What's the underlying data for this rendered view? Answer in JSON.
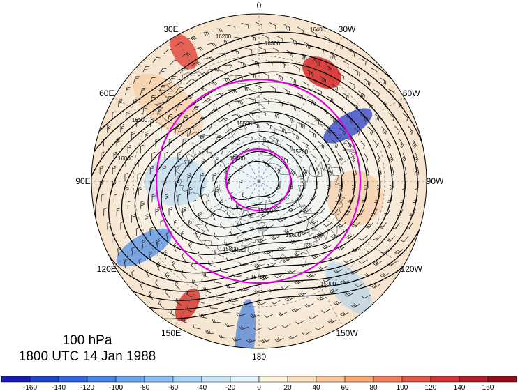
{
  "map": {
    "projection": "north-polar-stereographic",
    "longitude_labels": [
      {
        "text": "0",
        "lon": 0
      },
      {
        "text": "30W",
        "lon": -30
      },
      {
        "text": "60W",
        "lon": -60
      },
      {
        "text": "90W",
        "lon": -90
      },
      {
        "text": "120W",
        "lon": -120
      },
      {
        "text": "150W",
        "lon": -150
      },
      {
        "text": "180",
        "lon": 180
      },
      {
        "text": "150E",
        "lon": 150
      },
      {
        "text": "120E",
        "lon": 120
      },
      {
        "text": "90E",
        "lon": 90
      },
      {
        "text": "60E",
        "lon": 60
      },
      {
        "text": "30E",
        "lon": 30
      }
    ],
    "contour_labels": [
      "16400",
      "16300",
      "16200",
      "16100",
      "16000",
      "15900",
      "15800",
      "15700",
      "15600",
      "15500",
      "15400",
      "15300",
      "15200"
    ],
    "anomaly_centers": [
      {
        "sign": "positive",
        "location": "near 30E"
      },
      {
        "sign": "positive",
        "location": "near 30W"
      },
      {
        "sign": "negative",
        "location": "near 60W"
      },
      {
        "sign": "negative",
        "location": "near 120E"
      },
      {
        "sign": "positive",
        "location": "near 150E"
      },
      {
        "sign": "negative",
        "location": "near 150W-180"
      }
    ],
    "colors": {
      "contour": "#000000",
      "highlight_contour": "#e100e1",
      "coastline": "#333333"
    }
  },
  "caption": {
    "level": "100 hPa",
    "time": "1800 UTC 14 Jan 1988"
  },
  "colorbar": {
    "tick_labels": [
      "-160",
      "-140",
      "-120",
      "-100",
      "-80",
      "-60",
      "-40",
      "-20",
      "0",
      "20",
      "40",
      "60",
      "80",
      "100",
      "120",
      "140",
      "160"
    ],
    "colors": [
      "#1a1ab5",
      "#2244cc",
      "#3366dd",
      "#4d88e8",
      "#6aa5ee",
      "#8cc2f3",
      "#aad6f6",
      "#c8e8f9",
      "#e6f5fc",
      "#fdf3dc",
      "#fbe0bd",
      "#f8c79a",
      "#f4a876",
      "#ee8260",
      "#e55a4c",
      "#d3353a",
      "#b81d2a",
      "#930d1a"
    ]
  }
}
